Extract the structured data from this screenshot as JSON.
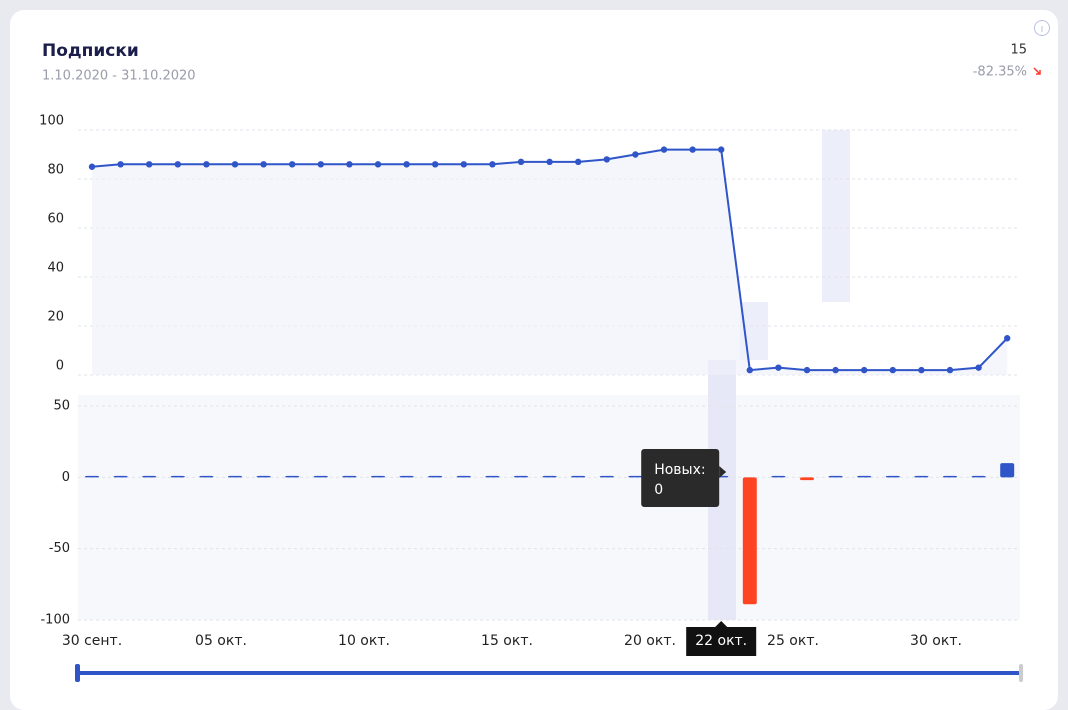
{
  "header": {
    "title": "Подписки",
    "date_range": "1.10.2020 - 31.10.2020",
    "total": 15,
    "change": "-82.35%"
  },
  "chart_data": [
    {
      "type": "line",
      "color": "#2f55c8",
      "values": [
        85,
        86,
        86,
        86,
        86,
        86,
        86,
        86,
        86,
        86,
        86,
        86,
        86,
        86,
        86,
        87,
        87,
        87,
        88,
        90,
        92,
        92,
        92,
        2,
        3,
        2,
        2,
        2,
        2,
        2,
        2,
        3,
        15
      ],
      "ylim": [
        0,
        100
      ],
      "yticks": [
        0,
        20,
        40,
        60,
        80,
        100
      ],
      "grid": true
    },
    {
      "type": "bar",
      "color": "#2f55c8",
      "negative_color": "#ff4422",
      "categories": [
        "30 сент.",
        null,
        null,
        null,
        null,
        "05 окт.",
        null,
        null,
        null,
        null,
        "10 окт.",
        null,
        null,
        null,
        null,
        "15 окт.",
        null,
        null,
        null,
        null,
        "20 окт.",
        null,
        "22 окт.",
        null,
        null,
        "25 окт.",
        null,
        null,
        null,
        null,
        "30 окт.",
        null,
        null
      ],
      "values": [
        0,
        1,
        0,
        0,
        0,
        0,
        0,
        0,
        0,
        0,
        0,
        0,
        0,
        0,
        0,
        1,
        0,
        0,
        1,
        1,
        0,
        0,
        0,
        -89,
        1,
        -2,
        0,
        0,
        0,
        0,
        0,
        1,
        10
      ],
      "ylim": [
        -100,
        50
      ],
      "yticks": [
        -100,
        -50,
        0,
        50
      ],
      "grid": true,
      "tooltip_label": "Новых:",
      "highlight_index": 22
    }
  ]
}
